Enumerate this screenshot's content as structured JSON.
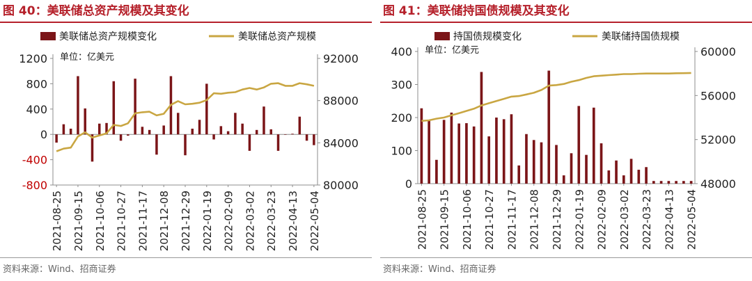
{
  "figures": [
    {
      "label": "图 40：",
      "title": "美联储总资产规模及其变化",
      "source": "资料来源：Wind、招商证券",
      "chart_data": {
        "type": "bar+line",
        "unit_note": "单位：亿美元",
        "legend": {
          "bar": "美联储总资产规模变化",
          "line": "美联储总资产规模"
        },
        "x_tick_labels": [
          "2021-08-25",
          "2021-09-15",
          "2021-10-06",
          "2021-10-27",
          "2021-11-17",
          "2021-12-08",
          "2021-12-29",
          "2022-01-19",
          "2022-02-09",
          "2022-03-02",
          "2022-03-23",
          "2022-04-13",
          "2022-05-04"
        ],
        "y_left": {
          "min": -800,
          "max": 1200,
          "ticks": [
            -800,
            -400,
            0,
            400,
            800,
            1200
          ],
          "tick_labels": [
            "-800",
            "-400",
            "0",
            "400",
            "800",
            "1200"
          ]
        },
        "y_right": {
          "min": 80000,
          "max": 92000,
          "ticks": [
            80000,
            84000,
            88000,
            92000
          ],
          "tick_labels": [
            "80000",
            "84000",
            "88000",
            "92000"
          ]
        },
        "bar_values": [
          -130,
          160,
          90,
          920,
          410,
          -430,
          170,
          180,
          840,
          -100,
          -20,
          880,
          120,
          70,
          -320,
          140,
          920,
          340,
          -330,
          90,
          230,
          800,
          -80,
          130,
          50,
          340,
          170,
          -260,
          70,
          440,
          80,
          -260,
          0,
          10,
          280,
          -100,
          -170
        ],
        "line_values": [
          83200,
          83450,
          83550,
          84600,
          85000,
          84500,
          84700,
          84900,
          85700,
          85600,
          85850,
          86800,
          86900,
          86950,
          86600,
          86750,
          87600,
          87950,
          87650,
          87700,
          87800,
          88050,
          88700,
          88650,
          88750,
          88800,
          89050,
          89200,
          89050,
          89250,
          89600,
          89650,
          89400,
          89400,
          89650,
          89550,
          89400
        ]
      }
    },
    {
      "label": "图 41：",
      "title": "美联储持国债规模及其变化",
      "source": "资料来源：Wind、招商证券",
      "chart_data": {
        "type": "bar+line",
        "unit_note": "单位：亿美元",
        "legend": {
          "bar": "持国债规模变化",
          "line": "美联储持国债规模"
        },
        "x_tick_labels": [
          "2021-08-25",
          "2021-09-15",
          "2021-10-06",
          "2021-10-27",
          "2021-11-17",
          "2021-12-08",
          "2021-12-29",
          "2022-01-19",
          "2022-02-09",
          "2022-03-02",
          "2022-03-23",
          "2022-04-13",
          "2022-05-04"
        ],
        "y_left": {
          "min": 0,
          "max": 400,
          "ticks": [
            0,
            100,
            200,
            300,
            400
          ],
          "tick_labels": [
            "0",
            "100",
            "200",
            "300",
            "400"
          ]
        },
        "y_right": {
          "min": 48000,
          "max": 60000,
          "ticks": [
            48000,
            52000,
            56000,
            60000
          ],
          "tick_labels": [
            "48000",
            "52000",
            "56000",
            "60000"
          ]
        },
        "bar_values": [
          228,
          193,
          72,
          193,
          215,
          182,
          183,
          173,
          338,
          143,
          200,
          195,
          210,
          55,
          150,
          132,
          125,
          342,
          117,
          25,
          92,
          235,
          87,
          230,
          122,
          40,
          70,
          25,
          75,
          42,
          50,
          8,
          8,
          8,
          8,
          8,
          8
        ],
        "line_values": [
          53700,
          53750,
          53900,
          54000,
          54200,
          54400,
          54600,
          54800,
          55100,
          55300,
          55500,
          55700,
          55900,
          55950,
          56100,
          56250,
          56500,
          56900,
          56950,
          57050,
          57250,
          57400,
          57600,
          57750,
          57800,
          57850,
          57900,
          57950,
          57950,
          57980,
          58000,
          58000,
          58000,
          58000,
          58020,
          58030,
          58050
        ]
      }
    }
  ]
}
